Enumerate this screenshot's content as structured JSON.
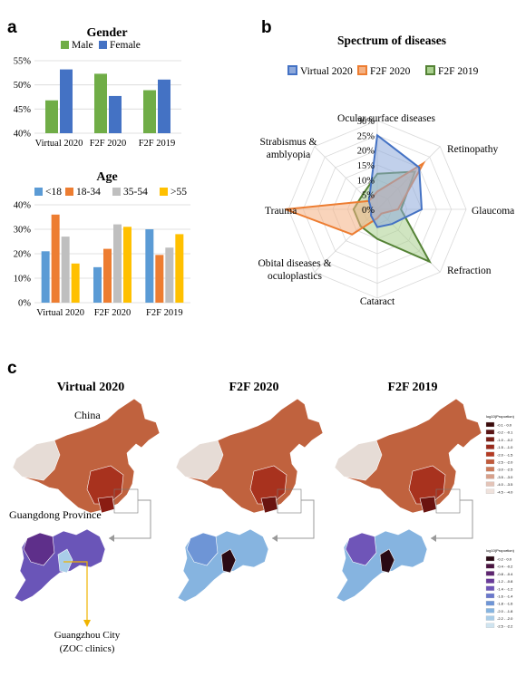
{
  "panels": {
    "a": "a",
    "b": "b",
    "c": "c"
  },
  "chart_data": [
    {
      "id": "gender",
      "type": "bar",
      "title": "Gender",
      "categories": [
        "Virtual 2020",
        "F2F 2020",
        "F2F 2019"
      ],
      "series": [
        {
          "name": "Male",
          "values": [
            46.8,
            52.3,
            48.9
          ],
          "color": "#70ad47"
        },
        {
          "name": "Female",
          "values": [
            53.2,
            47.7,
            51.1
          ],
          "color": "#4472c4"
        }
      ],
      "ylim": [
        40,
        55
      ],
      "yticks": [
        "40%",
        "45%",
        "50%",
        "55%"
      ],
      "grid": true,
      "legend": "top"
    },
    {
      "id": "age",
      "type": "bar",
      "title": "Age",
      "categories": [
        "Virtual 2020",
        "F2F 2020",
        "F2F 2019"
      ],
      "series": [
        {
          "name": "<18",
          "values": [
            21,
            14.5,
            30
          ],
          "color": "#5b9bd5"
        },
        {
          "name": "18-34",
          "values": [
            36,
            22,
            19.5
          ],
          "color": "#ed7d31"
        },
        {
          "name": "35-54",
          "values": [
            27,
            32,
            22.5
          ],
          "color": "#bfbfbf"
        },
        {
          "name": ">55",
          "values": [
            16,
            31,
            28
          ],
          "color": "#ffc000"
        }
      ],
      "ylim": [
        0,
        40
      ],
      "yticks": [
        "0%",
        "10%",
        "20%",
        "30%",
        "40%"
      ],
      "grid": true,
      "legend": "top"
    },
    {
      "id": "spectrum",
      "type": "radar",
      "title": "Spectrum of diseases",
      "axes": [
        "Ocular surface diseases",
        "Retinopathy",
        "Glaucoma",
        "Refraction",
        "Cataract",
        "Obital diseases & oculoplastics",
        "Trauma",
        "Strabismus & amblyopia"
      ],
      "rticks": [
        "0%",
        "5%",
        "10%",
        "15%",
        "20%",
        "25%",
        "30%"
      ],
      "rmax": 30,
      "series": [
        {
          "name": "Virtual 2020",
          "values": [
            25,
            20,
            15,
            7,
            6,
            3,
            2,
            4
          ],
          "color": "#4472c4",
          "fill": "#8ea9db"
        },
        {
          "name": "F2F 2020",
          "values": [
            6,
            22,
            7,
            2,
            3,
            12,
            31,
            4
          ],
          "color": "#ed7d31",
          "fill": "#f4b183"
        },
        {
          "name": "F2F 2019",
          "values": [
            12,
            18,
            8,
            25,
            10,
            8,
            8,
            7
          ],
          "color": "#548235",
          "fill": "#a9d08e"
        }
      ],
      "legend": "top"
    }
  ],
  "maps": {
    "titles": [
      "Virtual 2020",
      "F2F 2020",
      "F2F 2019"
    ],
    "labels": {
      "china": "China",
      "guangdong": "Guangdong Province",
      "guangzhou_1": "Guangzhou City",
      "guangzhou_2": "(ZOC clinics)"
    },
    "china_legend": {
      "title": "log10(Proportion)",
      "items": [
        "-0.1 - 0.0",
        "-0.2 - -0.1",
        "-1.0 - -0.2",
        "-1.5 - -1.0",
        "-2.0 - -1.5",
        "-2.5 - -2.0",
        "-3.0 - -2.5",
        "-3.5 - -3.0",
        "-4.0 - -3.5",
        "-4.5 - -4.0"
      ],
      "colors": [
        "#3a0a0a",
        "#5a1414",
        "#7a1e16",
        "#9a2a1c",
        "#b43a22",
        "#c05a3a",
        "#cc7a5a",
        "#d8a08a",
        "#e4c4b8",
        "#efe2dc"
      ]
    },
    "gd_legend": {
      "title": "log10(Proportion)",
      "items": [
        "-0.2 - 0.0",
        "-0.4 - -0.2",
        "-0.8 - -0.4",
        "-1.2 - -0.8",
        "-1.4 - -1.2",
        "-1.6 - -1.4",
        "-1.8 - -1.6",
        "-2.0 - -1.8",
        "-2.2 - -2.0",
        "-2.5 - -2.2"
      ],
      "colors": [
        "#2a0a14",
        "#4a1440",
        "#5e2570",
        "#6a3a9a",
        "#6f55b8",
        "#6a78cc",
        "#6e95d6",
        "#86b4e0",
        "#a9cde8",
        "#cfe4f0"
      ]
    }
  }
}
